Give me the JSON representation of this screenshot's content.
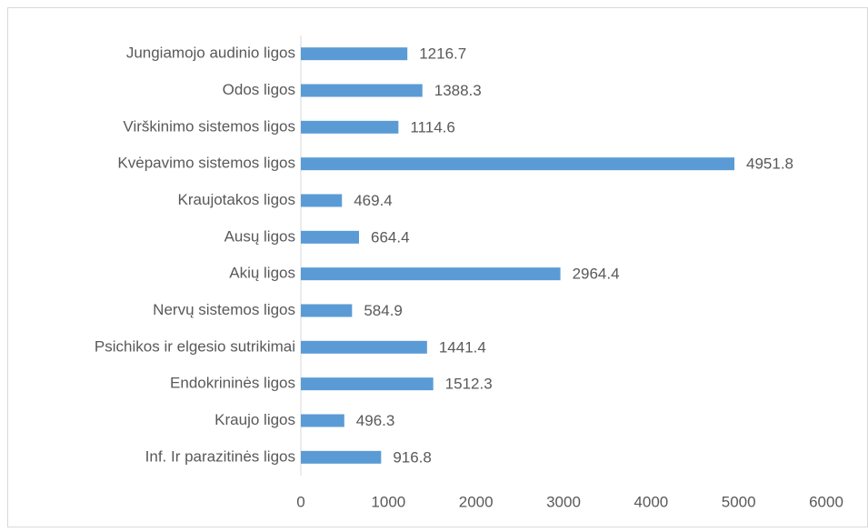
{
  "chart_data": {
    "type": "bar",
    "orientation": "horizontal",
    "categories": [
      "Jungiamojo audinio ligos",
      "Odos ligos",
      "Virškinimo sistemos ligos",
      "Kvėpavimo sistemos ligos",
      "Kraujotakos ligos",
      "Ausų ligos",
      "Akių ligos",
      "Nervų sistemos ligos",
      "Psichikos ir elgesio sutrikimai",
      "Endokrininės ligos",
      "Kraujo ligos",
      "Inf. Ir parazitinės ligos"
    ],
    "values": [
      1216.7,
      1388.3,
      1114.6,
      4951.8,
      469.4,
      664.4,
      2964.4,
      584.9,
      1441.4,
      1512.3,
      496.3,
      916.8
    ],
    "color": "#5b9bd5",
    "xlim": [
      0,
      6000
    ],
    "xticks": [
      0,
      1000,
      2000,
      3000,
      4000,
      5000,
      6000
    ],
    "grid": false
  }
}
